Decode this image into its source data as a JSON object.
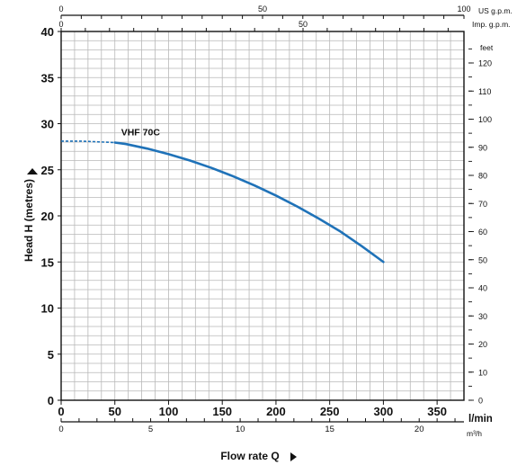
{
  "chart_data": {
    "type": "line",
    "title": "",
    "series": [
      {
        "name": "VHF 70C",
        "color": "#1f72b8",
        "dashed_segment": {
          "x": [
            0,
            10,
            20,
            30,
            40,
            50
          ],
          "y": [
            28.1,
            28.1,
            28.1,
            28.05,
            28.0,
            27.95
          ]
        },
        "x": [
          50,
          60,
          80,
          100,
          120,
          140,
          160,
          180,
          200,
          220,
          240,
          260,
          280,
          300
        ],
        "y": [
          27.95,
          27.8,
          27.3,
          26.7,
          26.0,
          25.2,
          24.3,
          23.3,
          22.2,
          21.0,
          19.7,
          18.3,
          16.7,
          15.0
        ]
      }
    ],
    "axes": {
      "y_left": {
        "label": "Head H (metres)",
        "range": [
          0,
          40
        ],
        "ticks": [
          0,
          5,
          10,
          15,
          20,
          25,
          30,
          35,
          40
        ]
      },
      "x_bottom": {
        "label": "l/min",
        "range": [
          0,
          375
        ],
        "ticks": [
          0,
          50,
          100,
          150,
          200,
          250,
          300,
          350
        ]
      },
      "x_bottom2": {
        "label": "m³/h",
        "range": [
          0,
          22.5
        ],
        "ticks": [
          0,
          5,
          10,
          15,
          20
        ]
      },
      "x_top": {
        "label": "US g.p.m.",
        "range": [
          0,
          100
        ],
        "ticks": [
          0,
          50,
          100
        ]
      },
      "x_top2": {
        "label": "Imp. g.p.m.",
        "range": [
          0,
          83.27
        ],
        "ticks": [
          0,
          50
        ]
      },
      "y_right": {
        "label": "feet",
        "range": [
          0,
          131.2
        ],
        "ticks": [
          0,
          10,
          20,
          30,
          40,
          50,
          60,
          70,
          80,
          90,
          100,
          110,
          120
        ]
      }
    },
    "xlabel": "Flow rate Q",
    "ylabel": "Head H (metres)",
    "grid": true,
    "colors": {
      "grid": "#b8b8b8",
      "axis": "#111111",
      "curve": "#1f72b8"
    }
  }
}
